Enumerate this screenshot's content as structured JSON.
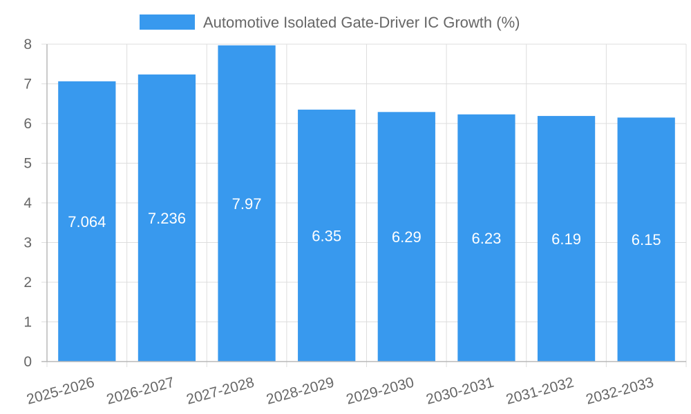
{
  "chart_data": {
    "type": "bar",
    "categories": [
      "2025-2026",
      "2026-2027",
      "2027-2028",
      "2028-2029",
      "2029-2030",
      "2030-2031",
      "2031-2032",
      "2032-2033"
    ],
    "series": [
      {
        "name": "Automotive Isolated Gate-Driver IC Growth (%)",
        "values": [
          7.064,
          7.236,
          7.97,
          6.35,
          6.29,
          6.23,
          6.19,
          6.15
        ],
        "data_labels": [
          "7.064",
          "7.236",
          "7.97",
          "6.35",
          "6.29",
          "6.23",
          "6.19",
          "6.15"
        ]
      }
    ],
    "title": "",
    "xlabel": "",
    "ylabel": "",
    "ylim": [
      0,
      8
    ],
    "yticks": [
      "0",
      "1",
      "2",
      "3",
      "4",
      "5",
      "6",
      "7",
      "8"
    ],
    "grid": true,
    "legend_position": "top-center",
    "bar_color": "#3899ee"
  }
}
